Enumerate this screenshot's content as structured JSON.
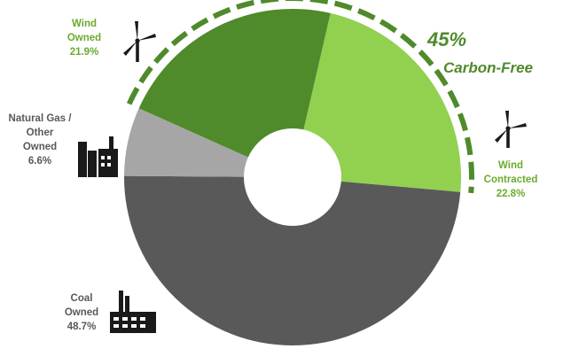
{
  "chart_data": {
    "type": "pie",
    "variant": "donut",
    "slices": [
      {
        "label": "Wind Contracted",
        "label_lines": [
          "Wind",
          "Contracted"
        ],
        "value": 22.8,
        "value_text": "22.8%",
        "color": "#92d050",
        "icon": "wind-turbine-icon"
      },
      {
        "label": "Coal Owned",
        "label_lines": [
          "Coal",
          "Owned"
        ],
        "value": 48.7,
        "value_text": "48.7%",
        "color": "#595959",
        "icon": "coal-plant-icon"
      },
      {
        "label": "Natural Gas / Other Owned",
        "label_lines": [
          "Natural Gas /",
          "Other",
          "Owned"
        ],
        "value": 6.6,
        "value_text": "6.6%",
        "color": "#a6a6a6",
        "icon": "gas-plant-icon"
      },
      {
        "label": "Wind Owned",
        "label_lines": [
          "Wind",
          "Owned"
        ],
        "value": 21.9,
        "value_text": "21.9%",
        "color": "#4f8a2b",
        "icon": "wind-turbine-icon"
      }
    ],
    "callout": {
      "percent": "45%",
      "text": "Carbon-Free",
      "color": "#4f8a2b"
    },
    "label_colors": {
      "green": "#6aab2e",
      "gray": "#595959"
    }
  }
}
